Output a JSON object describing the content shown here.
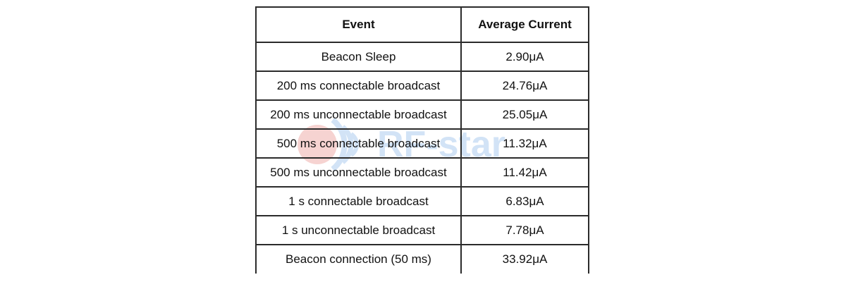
{
  "table": {
    "headers": [
      "Event",
      "Average Current"
    ],
    "rows": [
      [
        "Beacon Sleep",
        "2.90μA"
      ],
      [
        "200 ms connectable broadcast",
        "24.76μA"
      ],
      [
        "200 ms unconnectable broadcast",
        "25.05μA"
      ],
      [
        "500 ms connectable broadcast",
        "11.32μA"
      ],
      [
        "500 ms unconnectable broadcast",
        "11.42μA"
      ],
      [
        "1 s connectable broadcast",
        "6.83μA"
      ],
      [
        "1 s unconnectable broadcast",
        "7.78μA"
      ],
      [
        "Beacon connection (50 ms)",
        "33.92μA"
      ]
    ]
  },
  "watermark": {
    "text": "RF-star",
    "colors": {
      "red": "#e8837d",
      "blue": "#7fb0e6"
    }
  }
}
